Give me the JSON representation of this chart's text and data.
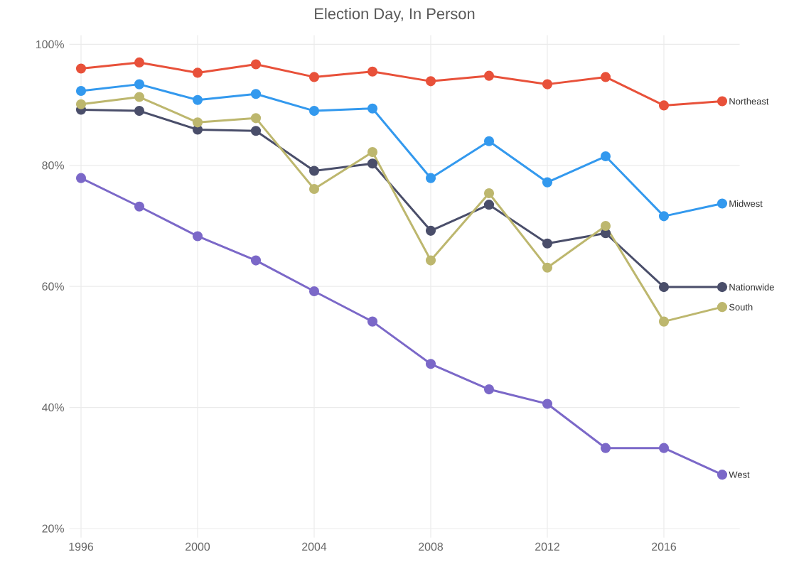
{
  "chart_data": {
    "type": "line",
    "title": "Election Day, In Person",
    "x": [
      1996,
      1998,
      2000,
      2002,
      2004,
      2006,
      2008,
      2010,
      2012,
      2014,
      2016,
      2018
    ],
    "series": [
      {
        "name": "Northeast",
        "color": "#e8513a",
        "values": [
          96,
          97,
          95.3,
          96.7,
          94.6,
          95.5,
          93.9,
          94.8,
          93.4,
          94.6,
          89.9,
          90.6
        ]
      },
      {
        "name": "Midwest",
        "color": "#3399ee",
        "values": [
          92.3,
          93.4,
          90.8,
          91.8,
          89,
          89.4,
          77.9,
          84,
          77.2,
          81.5,
          71.6,
          73.7
        ]
      },
      {
        "name": "Nationwide",
        "color": "#4a4e6a",
        "values": [
          89.2,
          89,
          85.9,
          85.7,
          79.1,
          80.3,
          69.2,
          73.5,
          67.1,
          68.8,
          59.9,
          59.9
        ]
      },
      {
        "name": "South",
        "color": "#bdb76e",
        "values": [
          90.1,
          91.3,
          87.1,
          87.8,
          76.1,
          82.2,
          64.3,
          75.4,
          63.1,
          70,
          54.2,
          56.6
        ]
      },
      {
        "name": "West",
        "color": "#7b68c8",
        "values": [
          77.9,
          73.2,
          68.3,
          64.3,
          59.2,
          54.2,
          47.2,
          43,
          40.6,
          33.3,
          33.3,
          28.9
        ]
      }
    ],
    "xlim": [
      1995.6,
      2018.6
    ],
    "xticks": [
      1996,
      2000,
      2004,
      2008,
      2012,
      2016
    ],
    "ylim": [
      18.5,
      101.5
    ],
    "yticks": [
      {
        "value": 20,
        "label": "20%"
      },
      {
        "value": 40,
        "label": "40%"
      },
      {
        "value": 60,
        "label": "60%"
      },
      {
        "value": 80,
        "label": "80%"
      },
      {
        "value": 100,
        "label": "100%"
      }
    ],
    "grid": true,
    "marker": "circle",
    "line_style": "solid"
  }
}
